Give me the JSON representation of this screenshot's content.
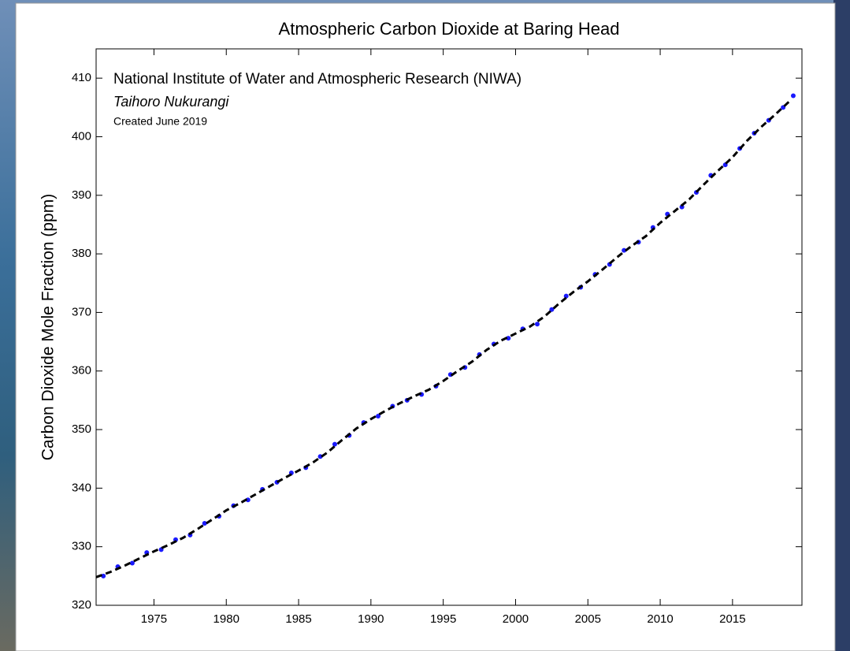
{
  "chart_data": {
    "type": "scatter",
    "title": "Atmospheric Carbon Dioxide at Baring Head",
    "y_label": "Carbon Dioxide Mole Fraction (ppm)",
    "annotations": [
      "National Institute of Water and Atmospheric Research (NIWA)",
      "Taihoro Nukurangi",
      "Created June 2019"
    ],
    "xlim": [
      1971,
      2019.8
    ],
    "ylim": [
      320,
      415
    ],
    "xticks": [
      1975,
      1980,
      1985,
      1990,
      1995,
      2000,
      2005,
      2010,
      2015
    ],
    "yticks": [
      320,
      330,
      340,
      350,
      360,
      370,
      380,
      390,
      400,
      410
    ],
    "series": [
      {
        "style": "points",
        "color": "#1a1aff",
        "x": [
          1971.5,
          1972.5,
          1973.5,
          1974.5,
          1975.5,
          1976.5,
          1977.5,
          1978.5,
          1979.5,
          1980.5,
          1981.5,
          1982.5,
          1983.5,
          1984.5,
          1985.5,
          1986.5,
          1987.5,
          1988.5,
          1989.5,
          1990.5,
          1991.5,
          1992.5,
          1993.5,
          1994.5,
          1995.5,
          1996.5,
          1997.5,
          1998.5,
          1999.5,
          2000.5,
          2001.5,
          2002.5,
          2003.5,
          2004.5,
          2005.5,
          2006.5,
          2007.5,
          2008.5,
          2009.5,
          2010.5,
          2011.5,
          2012.5,
          2013.5,
          2014.5,
          2015.5,
          2016.5,
          2017.5,
          2018.5,
          2019.2
        ],
        "values": [
          325.0,
          326.6,
          327.2,
          329.0,
          329.5,
          331.2,
          332.0,
          334.0,
          335.2,
          337.0,
          338.0,
          339.8,
          341.0,
          342.6,
          343.5,
          345.4,
          347.5,
          349.0,
          351.2,
          352.3,
          354.0,
          355.0,
          356.0,
          357.4,
          359.4,
          360.6,
          362.8,
          364.6,
          365.6,
          367.2,
          368.0,
          370.5,
          372.8,
          374.3,
          376.5,
          378.2,
          380.6,
          382.0,
          384.5,
          386.8,
          388.0,
          390.5,
          393.4,
          395.2,
          398.0,
          400.6,
          402.8,
          405.0,
          407.0
        ]
      },
      {
        "style": "dashed",
        "color": "#000000",
        "x": [
          1971,
          1972,
          1973,
          1974,
          1975,
          1976,
          1977,
          1978,
          1979,
          1980,
          1981,
          1982,
          1983,
          1984,
          1985,
          1986,
          1987,
          1988,
          1989,
          1990,
          1991,
          1992,
          1993,
          1994,
          1995,
          1996,
          1997,
          1998,
          1999,
          2000,
          2001,
          2002,
          2003,
          2004,
          2005,
          2006,
          2007,
          2008,
          2009,
          2010,
          2011,
          2012,
          2013,
          2014,
          2015,
          2016,
          2017,
          2018,
          2019
        ],
        "values": [
          324.8,
          325.7,
          326.8,
          328,
          329.2,
          330.3,
          331.5,
          333,
          334.6,
          336.2,
          337.5,
          338.9,
          340.3,
          341.7,
          343,
          344.4,
          346.1,
          348.2,
          350.2,
          351.8,
          353.2,
          354.5,
          355.7,
          356.8,
          358.3,
          360,
          361.6,
          363.6,
          365.2,
          366.4,
          367.6,
          369.3,
          371.5,
          373.5,
          375.3,
          377.3,
          379.4,
          381.3,
          383,
          385.3,
          387.3,
          389.3,
          391.8,
          394.2,
          396.5,
          399.3,
          401.7,
          403.9,
          406.2
        ]
      }
    ]
  }
}
